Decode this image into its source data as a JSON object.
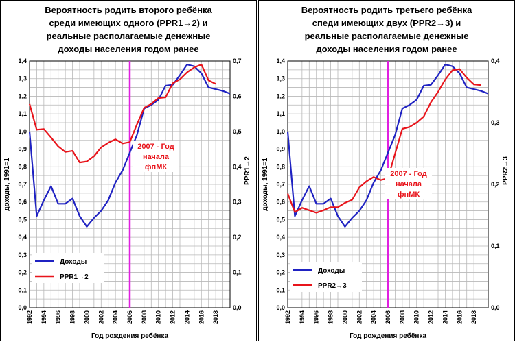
{
  "chart_data": [
    {
      "type": "line",
      "title_lines": [
        "Вероятность родить второго ребёнка",
        "среди имеющих одного (PPR1→2) и",
        "реальные располагаемые денежные",
        "доходы населения годом ранее"
      ],
      "xlabel": "Год рождения ребёнка",
      "ylabel_left": "доходы, 1991=1",
      "ylabel_right": "PPR1→2",
      "xlim": [
        1992,
        2020
      ],
      "ylim_left": [
        0,
        1.4
      ],
      "ylim_right": [
        0,
        0.7
      ],
      "x_ticks": [
        "1992",
        "1994",
        "1996",
        "1998",
        "2000",
        "2002",
        "2004",
        "2006",
        "2008",
        "2010",
        "2012",
        "2014",
        "2016",
        "2018"
      ],
      "y_ticks_left": [
        "0,0",
        "0,1",
        "0,2",
        "0,3",
        "0,4",
        "0,5",
        "0,6",
        "0,7",
        "0,8",
        "0,9",
        "1,0",
        "1,1",
        "1,2",
        "1,3",
        "1,4"
      ],
      "y_ticks_right": [
        "0,0",
        "0,1",
        "0,2",
        "0,3",
        "0,4",
        "0,5",
        "0,6",
        "0,7"
      ],
      "vline_x": 2006,
      "annotation_lines": [
        "2007 - Год",
        "начала",
        "фпМК"
      ],
      "grid": true,
      "legend_position": "bottom-left",
      "series": [
        {
          "name": "Доходы",
          "axis": "left",
          "color": "#1f22c2",
          "x": [
            1992,
            1993,
            1994,
            1995,
            1996,
            1997,
            1998,
            1999,
            2000,
            2001,
            2002,
            2003,
            2004,
            2005,
            2006,
            2007,
            2008,
            2009,
            2010,
            2011,
            2012,
            2013,
            2014,
            2015,
            2016,
            2017,
            2018,
            2019,
            2020
          ],
          "values": [
            1.0,
            0.52,
            0.61,
            0.69,
            0.59,
            0.59,
            0.62,
            0.52,
            0.46,
            0.51,
            0.55,
            0.61,
            0.71,
            0.78,
            0.88,
            0.98,
            1.13,
            1.15,
            1.18,
            1.26,
            1.265,
            1.32,
            1.38,
            1.37,
            1.33,
            1.25,
            1.24,
            1.23,
            1.215
          ]
        },
        {
          "name": "PPR1→2",
          "axis": "right",
          "color": "#e8141b",
          "x": [
            1992,
            1993,
            1994,
            1995,
            1996,
            1997,
            1998,
            1999,
            2000,
            2001,
            2002,
            2003,
            2004,
            2005,
            2006,
            2007,
            2008,
            2009,
            2010,
            2011,
            2012,
            2013,
            2014,
            2015,
            2016,
            2017,
            2018
          ],
          "values": [
            0.578,
            0.505,
            0.507,
            0.483,
            0.458,
            0.442,
            0.445,
            0.412,
            0.415,
            0.43,
            0.455,
            0.468,
            0.478,
            0.466,
            0.47,
            0.52,
            0.567,
            0.578,
            0.595,
            0.597,
            0.637,
            0.648,
            0.668,
            0.682,
            0.69,
            0.645,
            0.635
          ]
        }
      ]
    },
    {
      "type": "line",
      "title_lines": [
        "Вероятность родить третьего ребёнка",
        "спеди имеющих двух (PPR2→3) и",
        "реальные располагаемые денежные",
        "доходы населения годом ранее"
      ],
      "xlabel": "Год рождения ребёнка",
      "ylabel_left": "доходы, 1991=1",
      "ylabel_right": "PPR2→3",
      "xlim": [
        1992,
        2020
      ],
      "ylim_left": [
        0,
        1.4
      ],
      "ylim_right": [
        0,
        0.4
      ],
      "x_ticks": [
        "1992",
        "1994",
        "1996",
        "1998",
        "2000",
        "2002",
        "2004",
        "2006",
        "2008",
        "2010",
        "2012",
        "2014",
        "2016",
        "2018"
      ],
      "y_ticks_left": [
        "0,0",
        "0,1",
        "0,2",
        "0,3",
        "0,4",
        "0,5",
        "0,6",
        "0,7",
        "0,8",
        "0,9",
        "1,0",
        "1,1",
        "1,2",
        "1,3",
        "1,4"
      ],
      "y_ticks_right": [
        "0,0",
        "0,1",
        "0,2",
        "0,3",
        "0,4"
      ],
      "vline_x": 2006,
      "annotation_lines": [
        "2007 - Год",
        "начала",
        "фпМК"
      ],
      "grid": true,
      "legend_position": "bottom-left",
      "series": [
        {
          "name": "Доходы",
          "axis": "left",
          "color": "#1f22c2",
          "x": [
            1992,
            1993,
            1994,
            1995,
            1996,
            1997,
            1998,
            1999,
            2000,
            2001,
            2002,
            2003,
            2004,
            2005,
            2006,
            2007,
            2008,
            2009,
            2010,
            2011,
            2012,
            2013,
            2014,
            2015,
            2016,
            2017,
            2018,
            2019,
            2020
          ],
          "values": [
            1.0,
            0.52,
            0.61,
            0.69,
            0.59,
            0.59,
            0.62,
            0.52,
            0.46,
            0.51,
            0.55,
            0.61,
            0.71,
            0.78,
            0.88,
            0.98,
            1.13,
            1.15,
            1.18,
            1.26,
            1.265,
            1.32,
            1.38,
            1.37,
            1.33,
            1.25,
            1.24,
            1.23,
            1.215
          ]
        },
        {
          "name": "PPR2→3",
          "axis": "right",
          "color": "#e8141b",
          "x": [
            1992,
            1993,
            1994,
            1995,
            1996,
            1997,
            1998,
            1999,
            2000,
            2001,
            2002,
            2003,
            2004,
            2005,
            2006,
            2007,
            2008,
            2009,
            2010,
            2011,
            2012,
            2013,
            2014,
            2015,
            2016,
            2017,
            2018,
            2019
          ],
          "values": [
            0.185,
            0.155,
            0.162,
            0.158,
            0.154,
            0.158,
            0.163,
            0.163,
            0.17,
            0.175,
            0.195,
            0.205,
            0.212,
            0.207,
            0.21,
            0.25,
            0.29,
            0.293,
            0.3,
            0.31,
            0.333,
            0.35,
            0.37,
            0.385,
            0.387,
            0.373,
            0.362,
            0.361
          ]
        }
      ]
    }
  ]
}
